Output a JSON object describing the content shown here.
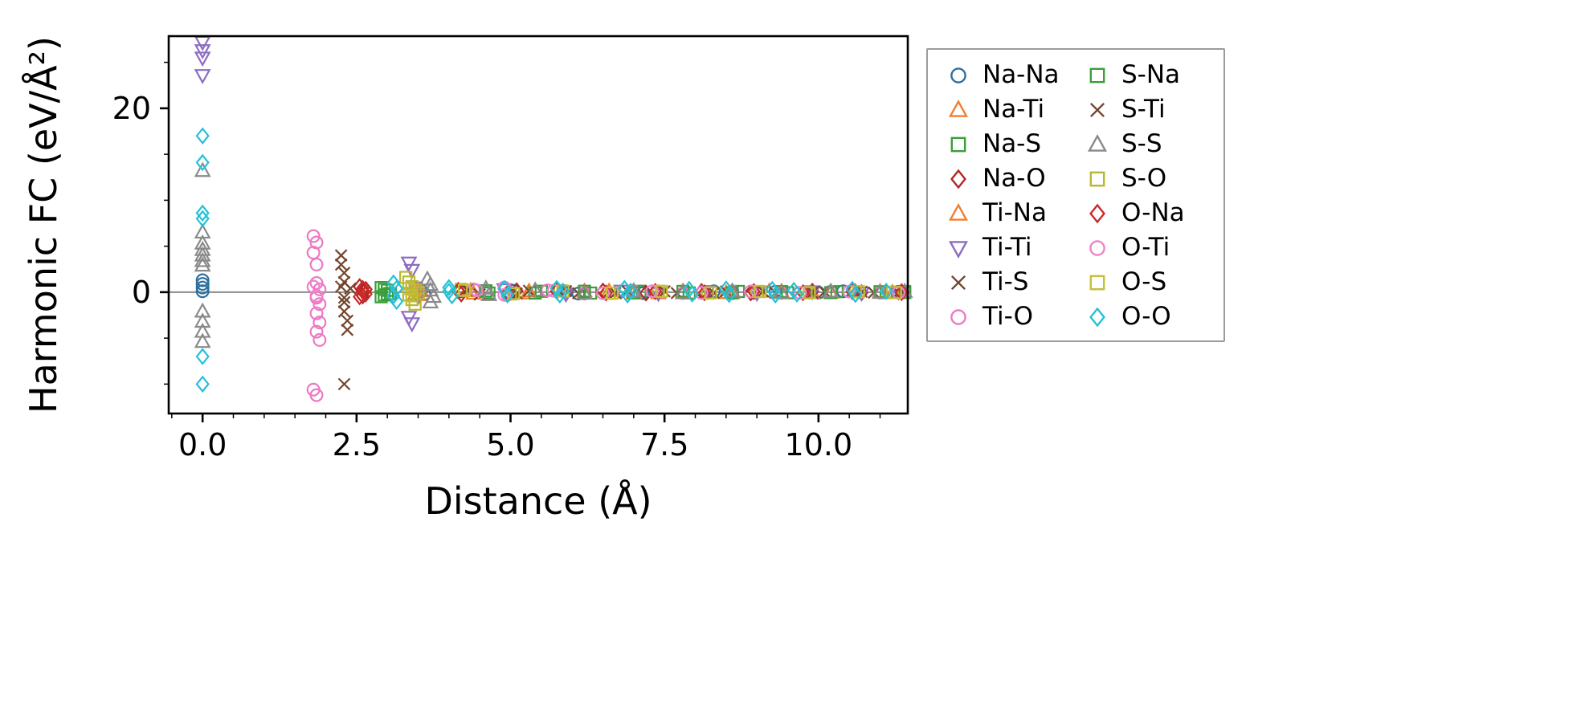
{
  "chart_data": {
    "type": "scatter",
    "title": "",
    "xlabel": "Distance (Å)",
    "ylabel": "Harmonic FC (eV/Å²)",
    "xlim": [
      -0.55,
      11.45
    ],
    "ylim": [
      -13.2,
      27.85
    ],
    "grid": false,
    "legend_position": "outside-right",
    "zero_line": 0,
    "xticks": [
      {
        "v": 0.0,
        "label": "0.0"
      },
      {
        "v": 2.5,
        "label": "2.5"
      },
      {
        "v": 5.0,
        "label": "5.0"
      },
      {
        "v": 7.5,
        "label": "7.5"
      },
      {
        "v": 10.0,
        "label": "10.0"
      }
    ],
    "xminor": [
      -0.5,
      0.5,
      1.0,
      1.5,
      2.0,
      3.0,
      3.5,
      4.0,
      4.5,
      5.5,
      6.0,
      6.5,
      7.0,
      8.0,
      8.5,
      9.0,
      9.5,
      10.5,
      11.0
    ],
    "yticks": [
      {
        "v": 0,
        "label": "0"
      },
      {
        "v": 20,
        "label": "20"
      }
    ],
    "yminor": [
      -10,
      -5,
      5,
      10,
      15,
      25
    ],
    "series": [
      {
        "name": "Na-Na",
        "marker": "circle",
        "color": "#2d6f9e",
        "points": [
          [
            0,
            1.3
          ],
          [
            0,
            0.9
          ],
          [
            0,
            0.5
          ],
          [
            0,
            0.1
          ],
          [
            3.55,
            0.2
          ],
          [
            3.6,
            -0.2
          ],
          [
            4.2,
            0.1
          ],
          [
            5.0,
            -0.1
          ],
          [
            5.05,
            0.15
          ],
          [
            5.9,
            0.1
          ],
          [
            6.1,
            -0.15
          ],
          [
            7.0,
            0.1
          ],
          [
            7.15,
            -0.1
          ],
          [
            8.3,
            0.1
          ],
          [
            8.6,
            -0.1
          ],
          [
            9.3,
            0.05
          ],
          [
            10.0,
            -0.05
          ],
          [
            10.4,
            0.1
          ],
          [
            11.0,
            -0.05
          ],
          [
            11.3,
            0.05
          ]
        ]
      },
      {
        "name": "Na-Ti",
        "marker": "triangle-up",
        "color": "#f07f2e",
        "points": [
          [
            3.45,
            0.3
          ],
          [
            3.5,
            -0.3
          ],
          [
            3.55,
            0.1
          ],
          [
            4.35,
            0.15
          ],
          [
            4.4,
            -0.15
          ],
          [
            5.3,
            0.1
          ],
          [
            6.2,
            -0.1
          ],
          [
            6.6,
            0.1
          ],
          [
            7.4,
            -0.1
          ],
          [
            7.8,
            0.1
          ],
          [
            8.5,
            -0.08
          ],
          [
            9.2,
            0.08
          ],
          [
            9.9,
            -0.06
          ],
          [
            10.6,
            0.06
          ],
          [
            11.2,
            -0.05
          ]
        ]
      },
      {
        "name": "Na-S",
        "marker": "square",
        "color": "#3a9e3a",
        "points": [
          [
            2.9,
            0.5
          ],
          [
            2.95,
            -0.3
          ],
          [
            3.0,
            0.2
          ],
          [
            3.05,
            -0.15
          ],
          [
            4.6,
            0.15
          ],
          [
            4.65,
            -0.1
          ],
          [
            5.5,
            0.1
          ],
          [
            6.3,
            -0.1
          ],
          [
            7.1,
            0.1
          ],
          [
            7.9,
            -0.08
          ],
          [
            8.7,
            0.08
          ],
          [
            9.5,
            -0.06
          ],
          [
            10.3,
            0.06
          ],
          [
            11.1,
            -0.05
          ],
          [
            11.4,
            0.05
          ]
        ]
      },
      {
        "name": "Na-O",
        "marker": "diamond",
        "color": "#b42525",
        "points": [
          [
            2.55,
            0.6
          ],
          [
            2.6,
            0.1
          ],
          [
            2.6,
            -0.4
          ],
          [
            2.65,
            0.3
          ],
          [
            4.15,
            0.2
          ],
          [
            4.2,
            -0.2
          ],
          [
            5.1,
            0.15
          ],
          [
            5.9,
            -0.1
          ],
          [
            6.5,
            0.12
          ],
          [
            7.2,
            -0.1
          ],
          [
            8.1,
            0.08
          ],
          [
            8.9,
            -0.08
          ],
          [
            9.9,
            0.1
          ],
          [
            10.7,
            -0.06
          ],
          [
            11.35,
            0.05
          ]
        ]
      },
      {
        "name": "Ti-Na",
        "marker": "triangle-up",
        "color": "#f07f2e",
        "points": [
          [
            3.45,
            -0.2
          ],
          [
            3.5,
            0.25
          ],
          [
            4.35,
            0.1
          ],
          [
            5.3,
            -0.12
          ],
          [
            6.2,
            0.1
          ],
          [
            7.0,
            -0.1
          ],
          [
            7.8,
            0.09
          ],
          [
            8.6,
            -0.08
          ],
          [
            9.4,
            0.07
          ],
          [
            10.2,
            -0.06
          ],
          [
            11.0,
            0.05
          ]
        ]
      },
      {
        "name": "Ti-Ti",
        "marker": "triangle-down",
        "color": "#8d6cc3",
        "points": [
          [
            0,
            27.2
          ],
          [
            0,
            26.3
          ],
          [
            0,
            25.5
          ],
          [
            0,
            23.6
          ],
          [
            3.35,
            3.2
          ],
          [
            3.4,
            2.4
          ],
          [
            3.35,
            -2.7
          ],
          [
            3.4,
            -3.4
          ],
          [
            3.45,
            0.5
          ],
          [
            3.5,
            -0.5
          ],
          [
            4.9,
            0.3
          ],
          [
            5.9,
            -0.2
          ],
          [
            6.8,
            0.15
          ],
          [
            7.4,
            -0.12
          ],
          [
            8.2,
            0.1
          ],
          [
            9.0,
            -0.1
          ],
          [
            9.9,
            0.08
          ],
          [
            10.7,
            -0.07
          ],
          [
            11.3,
            0.05
          ]
        ]
      },
      {
        "name": "Ti-S",
        "marker": "x",
        "color": "#74452d",
        "points": [
          [
            2.25,
            4.0
          ],
          [
            2.25,
            3.0
          ],
          [
            2.3,
            2.1
          ],
          [
            2.3,
            1.1
          ],
          [
            2.3,
            -1.1
          ],
          [
            2.3,
            -2.1
          ],
          [
            2.35,
            -3.1
          ],
          [
            2.35,
            -4.1
          ],
          [
            2.3,
            -10.0
          ],
          [
            2.4,
            0.4
          ],
          [
            4.3,
            0.3
          ],
          [
            4.5,
            -0.25
          ],
          [
            5.3,
            0.15
          ],
          [
            6.1,
            -0.12
          ],
          [
            6.9,
            0.1
          ],
          [
            7.7,
            -0.1
          ],
          [
            8.5,
            0.08
          ],
          [
            9.3,
            -0.07
          ],
          [
            10.1,
            0.06
          ],
          [
            10.9,
            -0.05
          ],
          [
            11.35,
            0.05
          ]
        ]
      },
      {
        "name": "Ti-O",
        "marker": "circle",
        "color": "#ec79c2",
        "points": [
          [
            1.8,
            6.1
          ],
          [
            1.85,
            5.4
          ],
          [
            1.8,
            4.3
          ],
          [
            1.85,
            3.0
          ],
          [
            1.85,
            1.0
          ],
          [
            1.9,
            0.3
          ],
          [
            1.85,
            -0.6
          ],
          [
            1.9,
            -1.3
          ],
          [
            1.85,
            -2.3
          ],
          [
            1.9,
            -3.3
          ],
          [
            1.85,
            -4.3
          ],
          [
            1.9,
            -5.2
          ],
          [
            1.8,
            -10.6
          ],
          [
            1.85,
            -11.2
          ],
          [
            4.4,
            0.3
          ],
          [
            4.9,
            0.5
          ],
          [
            4.95,
            -0.3
          ],
          [
            5.6,
            0.2
          ],
          [
            6.2,
            -0.15
          ],
          [
            7.0,
            0.12
          ],
          [
            7.8,
            -0.1
          ],
          [
            8.6,
            0.1
          ],
          [
            9.4,
            -0.08
          ],
          [
            10.2,
            0.07
          ],
          [
            11.0,
            -0.06
          ]
        ]
      },
      {
        "name": "S-Na",
        "marker": "square",
        "color": "#3a9e3a",
        "points": [
          [
            2.9,
            -0.5
          ],
          [
            2.95,
            0.3
          ],
          [
            3.0,
            -0.2
          ],
          [
            4.6,
            0.1
          ],
          [
            5.4,
            -0.1
          ],
          [
            6.2,
            0.1
          ],
          [
            7.0,
            -0.08
          ],
          [
            7.8,
            0.08
          ],
          [
            8.6,
            -0.07
          ],
          [
            9.4,
            0.06
          ],
          [
            10.2,
            -0.05
          ],
          [
            11.0,
            0.05
          ],
          [
            11.4,
            -0.04
          ]
        ]
      },
      {
        "name": "S-Ti",
        "marker": "x",
        "color": "#74452d",
        "points": [
          [
            2.25,
            0.6
          ],
          [
            2.3,
            -0.6
          ],
          [
            4.3,
            0.2
          ],
          [
            5.1,
            -0.15
          ],
          [
            5.9,
            0.12
          ],
          [
            6.7,
            -0.1
          ],
          [
            7.5,
            0.09
          ],
          [
            8.3,
            -0.08
          ],
          [
            9.1,
            0.07
          ],
          [
            9.9,
            -0.06
          ],
          [
            10.7,
            0.05
          ],
          [
            11.3,
            -0.05
          ]
        ]
      },
      {
        "name": "S-S",
        "marker": "triangle-up",
        "color": "#8a8a8a",
        "points": [
          [
            0,
            13.2
          ],
          [
            0,
            6.5
          ],
          [
            0,
            5.3
          ],
          [
            0,
            4.6
          ],
          [
            0,
            4.0
          ],
          [
            0,
            3.4
          ],
          [
            0,
            2.9
          ],
          [
            0,
            -2.1
          ],
          [
            0,
            -3.2
          ],
          [
            0,
            -4.3
          ],
          [
            0,
            -5.4
          ],
          [
            3.65,
            1.4
          ],
          [
            3.7,
            0.8
          ],
          [
            3.7,
            0.2
          ],
          [
            3.75,
            -0.5
          ],
          [
            3.7,
            -1.1
          ],
          [
            4.6,
            0.4
          ],
          [
            4.65,
            -0.3
          ],
          [
            5.4,
            0.2
          ],
          [
            6.2,
            -0.15
          ],
          [
            7.0,
            0.12
          ],
          [
            7.8,
            -0.1
          ],
          [
            8.6,
            0.09
          ],
          [
            9.4,
            -0.08
          ],
          [
            10.2,
            0.07
          ],
          [
            11.0,
            -0.06
          ],
          [
            11.4,
            0.05
          ]
        ]
      },
      {
        "name": "S-O",
        "marker": "square",
        "color": "#b8b832",
        "points": [
          [
            3.3,
            1.6
          ],
          [
            3.35,
            1.1
          ],
          [
            3.4,
            0.6
          ],
          [
            3.45,
            0.2
          ],
          [
            3.35,
            -0.3
          ],
          [
            3.4,
            -0.8
          ],
          [
            3.45,
            -1.3
          ],
          [
            3.5,
            -0.1
          ],
          [
            4.2,
            0.3
          ],
          [
            5.0,
            -0.2
          ],
          [
            5.8,
            0.15
          ],
          [
            6.6,
            -0.12
          ],
          [
            7.4,
            0.1
          ],
          [
            8.2,
            -0.09
          ],
          [
            9.0,
            0.08
          ],
          [
            9.8,
            -0.07
          ],
          [
            10.6,
            0.06
          ],
          [
            11.2,
            -0.05
          ]
        ]
      },
      {
        "name": "O-Na",
        "marker": "diamond",
        "color": "#cc2a2a",
        "points": [
          [
            2.55,
            -0.5
          ],
          [
            2.6,
            0.4
          ],
          [
            2.65,
            -0.2
          ],
          [
            4.15,
            0.15
          ],
          [
            4.95,
            -0.12
          ],
          [
            5.75,
            0.1
          ],
          [
            6.55,
            -0.09
          ],
          [
            7.35,
            0.08
          ],
          [
            8.15,
            -0.07
          ],
          [
            8.95,
            0.06
          ],
          [
            9.75,
            -0.06
          ],
          [
            10.55,
            0.05
          ],
          [
            11.35,
            -0.05
          ]
        ]
      },
      {
        "name": "O-Ti",
        "marker": "circle",
        "color": "#ee82c8",
        "points": [
          [
            1.8,
            0.6
          ],
          [
            1.85,
            -0.4
          ],
          [
            4.45,
            0.2
          ],
          [
            4.9,
            -0.3
          ],
          [
            5.7,
            0.15
          ],
          [
            6.5,
            -0.12
          ],
          [
            7.3,
            0.1
          ],
          [
            8.1,
            -0.09
          ],
          [
            8.9,
            0.08
          ],
          [
            9.7,
            -0.07
          ],
          [
            10.5,
            0.06
          ],
          [
            11.3,
            -0.05
          ]
        ]
      },
      {
        "name": "O-S",
        "marker": "square",
        "color": "#c5bf35",
        "points": [
          [
            3.35,
            0.4
          ],
          [
            3.4,
            -0.4
          ],
          [
            4.25,
            0.2
          ],
          [
            5.05,
            -0.15
          ],
          [
            5.85,
            0.12
          ],
          [
            6.65,
            -0.1
          ],
          [
            7.45,
            0.09
          ],
          [
            8.25,
            -0.08
          ],
          [
            9.05,
            0.07
          ],
          [
            9.85,
            -0.06
          ],
          [
            10.65,
            0.05
          ],
          [
            11.25,
            -0.05
          ]
        ]
      },
      {
        "name": "O-O",
        "marker": "diamond",
        "color": "#25c1d8",
        "points": [
          [
            0,
            17.0
          ],
          [
            0,
            14.1
          ],
          [
            0,
            8.6
          ],
          [
            0,
            8.0
          ],
          [
            0,
            -7.0
          ],
          [
            0,
            -10.0
          ],
          [
            3.1,
            1.0
          ],
          [
            3.15,
            0.4
          ],
          [
            3.1,
            -0.4
          ],
          [
            3.15,
            -1.0
          ],
          [
            4.0,
            0.5
          ],
          [
            4.05,
            -0.4
          ],
          [
            4.0,
            0.1
          ],
          [
            4.9,
            0.4
          ],
          [
            4.95,
            -0.3
          ],
          [
            5.75,
            0.4
          ],
          [
            5.8,
            -0.3
          ],
          [
            5.85,
            0.1
          ],
          [
            6.85,
            0.4
          ],
          [
            6.9,
            -0.3
          ],
          [
            6.95,
            0.1
          ],
          [
            7.9,
            0.3
          ],
          [
            7.95,
            -0.2
          ],
          [
            8.5,
            0.35
          ],
          [
            8.55,
            -0.25
          ],
          [
            9.25,
            0.3
          ],
          [
            9.3,
            -0.3
          ],
          [
            9.6,
            0.2
          ],
          [
            9.65,
            -0.2
          ],
          [
            10.55,
            0.3
          ],
          [
            10.6,
            -0.25
          ],
          [
            11.1,
            0.1
          ]
        ]
      }
    ]
  }
}
